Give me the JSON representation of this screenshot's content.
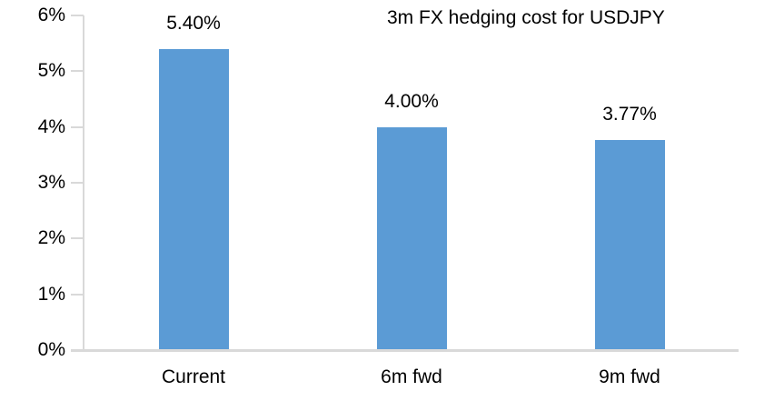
{
  "chart_data": {
    "type": "bar",
    "title": "3m FX hedging cost for USDJPY",
    "categories": [
      "Current",
      "6m fwd",
      "9m fwd"
    ],
    "values": [
      5.4,
      4.0,
      3.77
    ],
    "data_labels": [
      "5.40%",
      "4.00%",
      "3.77%"
    ],
    "ytick_labels": [
      "0%",
      "1%",
      "2%",
      "3%",
      "4%",
      "5%",
      "6%"
    ],
    "ylim": [
      0,
      6
    ],
    "xlabel": "",
    "ylabel": "",
    "grid": false,
    "legend_position": "none",
    "colors": {
      "bar": "#5B9BD5",
      "axis": "#D9D9D9",
      "text": "#000000",
      "background": "#FFFFFF"
    }
  }
}
